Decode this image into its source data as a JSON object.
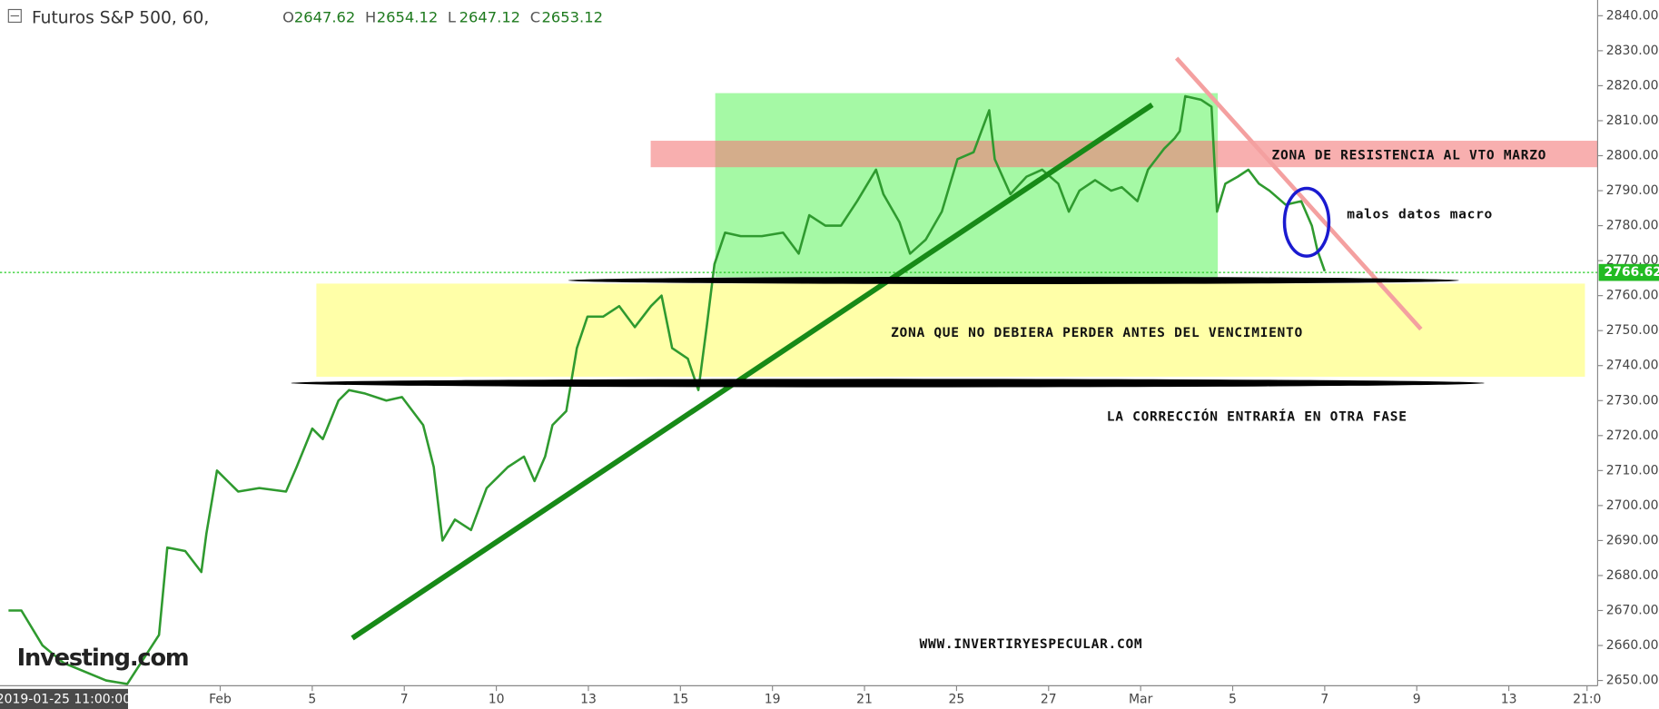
{
  "header": {
    "title": "Futuros S&P 500, 60,",
    "ohlc": [
      {
        "key": "O",
        "value": "2647.62"
      },
      {
        "key": "H",
        "value": "2654.12"
      },
      {
        "key": "L",
        "value": "2647.12"
      },
      {
        "key": "C",
        "value": "2653.12"
      }
    ],
    "cursor_time": "2019-01-25 11:00:00",
    "watermark": "Investing.com"
  },
  "chart_data": {
    "type": "line",
    "color": "#2f9a2f",
    "x": [
      0.4,
      0.68,
      1.14,
      1.6,
      2.52,
      2.98,
      3.67,
      3.85,
      4.24,
      4.59,
      4.7,
      4.93,
      5.39,
      5.85,
      6.43,
      6.66,
      7.0,
      7.23,
      7.57,
      7.8,
      8.15,
      8.61,
      8.95,
      9.41,
      9.64,
      9.83,
      10.1,
      10.45,
      10.79,
      11.02,
      11.25,
      11.6,
      11.83,
      12.06,
      12.22,
      12.52,
      12.75,
      12.98,
      13.32,
      13.67,
      14.01,
      14.36,
      14.59,
      14.82,
      15.16,
      15.39,
      15.57,
      15.74,
      15.97,
      16.31,
      16.77,
      17.23,
      17.57,
      17.8,
      18.15,
      18.49,
      18.84,
      19.25,
      19.41,
      19.76,
      19.99,
      20.33,
      20.68,
      21.02,
      21.37,
      21.71,
      21.83,
      22.17,
      22.52,
      22.86,
      23.21,
      23.44,
      23.67,
      24.01,
      24.36,
      24.59,
      24.93,
      25.16,
      25.51,
      25.74,
      25.85,
      25.97,
      26.31,
      26.54,
      26.66,
      26.84,
      27.11,
      27.34,
      27.57,
      27.8,
      28.15,
      28.49,
      28.72,
      28.84,
      29.0
    ],
    "values": [
      2670,
      2670,
      2660,
      2655,
      2650,
      2649,
      2663,
      2688,
      2687,
      2681,
      2692,
      2710,
      2704,
      2705,
      2704,
      2711,
      2722,
      2719,
      2730,
      2733,
      2732,
      2730,
      2731,
      2723,
      2711,
      2690,
      2696,
      2693,
      2705,
      2708,
      2711,
      2714,
      2707,
      2714,
      2723,
      2727,
      2745,
      2754,
      2754,
      2757,
      2751,
      2757,
      2760,
      2745,
      2742,
      2733,
      2751,
      2769,
      2778,
      2777,
      2777,
      2778,
      2772,
      2783,
      2780,
      2780,
      2787,
      2796,
      2789,
      2781,
      2772,
      2776,
      2784,
      2799,
      2801,
      2813,
      2799,
      2789,
      2794,
      2796,
      2792,
      2784,
      2790,
      2793,
      2790,
      2791,
      2787,
      2796,
      2802,
      2805,
      2807,
      2817,
      2816,
      2814,
      2784,
      2792,
      2794,
      2796,
      2792,
      2790,
      2786,
      2787,
      2780,
      2773,
      2767
    ],
    "last_value": 2766.62,
    "xlim": [
      0.33,
      34.93
    ],
    "xticks": [
      {
        "value": 5,
        "label": "Feb"
      },
      {
        "value": 7,
        "label": "5"
      },
      {
        "value": 9,
        "label": "7"
      },
      {
        "value": 11,
        "label": "10"
      },
      {
        "value": 13,
        "label": "13"
      },
      {
        "value": 15,
        "label": "15"
      },
      {
        "value": 17,
        "label": "19"
      },
      {
        "value": 19,
        "label": "21"
      },
      {
        "value": 21,
        "label": "25"
      },
      {
        "value": 23,
        "label": "27"
      },
      {
        "value": 25,
        "label": "Mar"
      },
      {
        "value": 27,
        "label": "5"
      },
      {
        "value": 29,
        "label": "7"
      },
      {
        "value": 31,
        "label": "9"
      },
      {
        "value": 33,
        "label": "13"
      },
      {
        "value": 34.7,
        "label": "21:0"
      }
    ],
    "ylim": [
      2648.5,
      2844.5
    ],
    "yticks": [
      {
        "value": 2650,
        "label": "2650.00"
      },
      {
        "value": 2660,
        "label": "2660.00"
      },
      {
        "value": 2670,
        "label": "2670.00"
      },
      {
        "value": 2680,
        "label": "2680.00"
      },
      {
        "value": 2690,
        "label": "2690.00"
      },
      {
        "value": 2700,
        "label": "2700.00"
      },
      {
        "value": 2710,
        "label": "2710.00"
      },
      {
        "value": 2720,
        "label": "2720.00"
      },
      {
        "value": 2730,
        "label": "2730.00"
      },
      {
        "value": 2740,
        "label": "2740.00"
      },
      {
        "value": 2750,
        "label": "2750.00"
      },
      {
        "value": 2760,
        "label": "2760.00"
      },
      {
        "value": 2770,
        "label": "2770.00"
      },
      {
        "value": 2780,
        "label": "2780.00"
      },
      {
        "value": 2790,
        "label": "2790.00"
      },
      {
        "value": 2800,
        "label": "2800.00"
      },
      {
        "value": 2810,
        "label": "2810.00"
      },
      {
        "value": 2820,
        "label": "2820.00"
      },
      {
        "value": 2830,
        "label": "2830.00"
      },
      {
        "value": 2840,
        "label": "2840.00"
      }
    ],
    "annotations": [
      "ZONA DE RESISTENCIA AL VTO MARZO",
      "malos datos macro",
      "ZONA QUE NO DEBIERA PERDER ANTES DEL VENCIMIENTO",
      "LA CORRECCIÓN ENTRARÍA EN OTRA FASE",
      "WWW.INVERTIRYESPECULAR.COM"
    ]
  }
}
